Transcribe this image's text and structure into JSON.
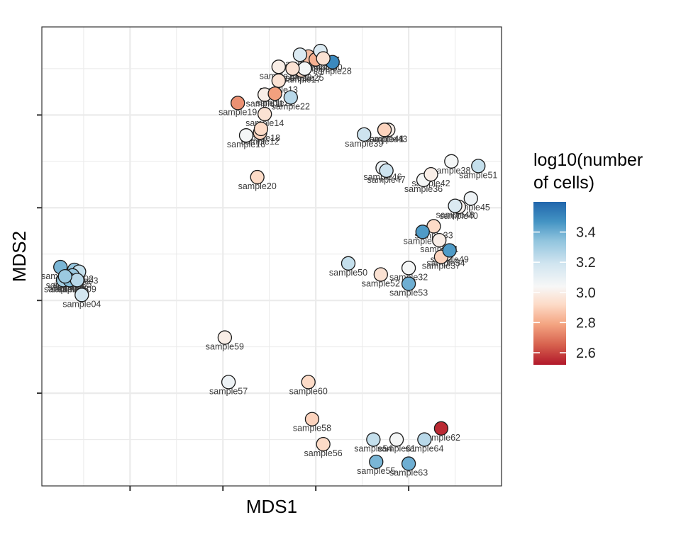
{
  "chart_data": {
    "type": "scatter",
    "xlabel": "MDS1",
    "ylabel": "MDS2",
    "xlim": [
      -1.95,
      3.0
    ],
    "ylim": [
      -2.0,
      2.95
    ],
    "x_major_ticks": [
      -1,
      0,
      1,
      2
    ],
    "y_major_ticks": [
      -1,
      0,
      1,
      2
    ],
    "grid": true,
    "x_tick_labels_shown": false,
    "y_tick_labels_shown": false,
    "color_scale": {
      "title_line1": "log10(number",
      "title_line2": "of cells)",
      "min": 2.52,
      "max": 3.6,
      "ticks": [
        2.6,
        2.8,
        3.0,
        3.2,
        3.4
      ],
      "tick_labels": [
        "2.6",
        "2.8",
        "3.0",
        "3.2",
        "3.4"
      ],
      "low_color": "#b2182b",
      "mid_color": "#f7f7f7",
      "high_color": "#2166ac"
    },
    "legend_position": "right",
    "points": [
      {
        "label": "sample01",
        "x": -1.75,
        "y": 0.36,
        "c": 3.38
      },
      {
        "label": "sample02",
        "x": -1.6,
        "y": 0.33,
        "c": 3.33
      },
      {
        "label": "sample03",
        "x": -1.55,
        "y": 0.31,
        "c": 3.22
      },
      {
        "label": "sample04",
        "x": -1.52,
        "y": 0.06,
        "c": 3.18
      },
      {
        "label": "sample05",
        "x": -1.62,
        "y": 0.27,
        "c": 3.32
      },
      {
        "label": "sample06",
        "x": -1.68,
        "y": 0.24,
        "c": 3.35
      },
      {
        "label": "sample07",
        "x": -1.72,
        "y": 0.22,
        "c": 3.3
      },
      {
        "label": "sample08",
        "x": -1.65,
        "y": 0.22,
        "c": 3.36
      },
      {
        "label": "sample09",
        "x": -1.57,
        "y": 0.22,
        "c": 3.25
      },
      {
        "label": "sample10",
        "x": -1.7,
        "y": 0.26,
        "c": 3.32
      },
      {
        "label": "sample11",
        "x": 0.45,
        "y": 2.22,
        "c": 3.0
      },
      {
        "label": "sample12",
        "x": 0.4,
        "y": 1.81,
        "c": 2.9
      },
      {
        "label": "sample13",
        "x": 0.6,
        "y": 2.37,
        "c": 2.95
      },
      {
        "label": "sample14",
        "x": 0.45,
        "y": 2.01,
        "c": 2.95
      },
      {
        "label": "sample15",
        "x": 0.6,
        "y": 2.52,
        "c": 3.0
      },
      {
        "label": "sample16",
        "x": 0.25,
        "y": 1.78,
        "c": 3.05
      },
      {
        "label": "sample17",
        "x": 0.85,
        "y": 2.48,
        "c": 2.92
      },
      {
        "label": "sample18",
        "x": 0.41,
        "y": 1.85,
        "c": 2.92
      },
      {
        "label": "sample19",
        "x": 0.16,
        "y": 2.13,
        "c": 2.75
      },
      {
        "label": "sample20",
        "x": 0.37,
        "y": 1.33,
        "c": 2.92
      },
      {
        "label": "sample21",
        "x": 0.56,
        "y": 2.23,
        "c": 2.78
      },
      {
        "label": "sample22",
        "x": 0.73,
        "y": 2.19,
        "c": 3.25
      },
      {
        "label": "sample23",
        "x": 0.92,
        "y": 2.63,
        "c": 2.85
      },
      {
        "label": "sample24",
        "x": 1.0,
        "y": 2.6,
        "c": 2.82
      },
      {
        "label": "sample25",
        "x": 0.88,
        "y": 2.5,
        "c": 3.05
      },
      {
        "label": "sample26",
        "x": 0.75,
        "y": 2.5,
        "c": 2.95
      },
      {
        "label": "sample27",
        "x": 1.05,
        "y": 2.69,
        "c": 3.15
      },
      {
        "label": "sample28",
        "x": 1.18,
        "y": 2.57,
        "c": 3.5
      },
      {
        "label": "sample29",
        "x": 0.83,
        "y": 2.65,
        "c": 3.15
      },
      {
        "label": "sample30",
        "x": 1.08,
        "y": 2.61,
        "c": 2.95
      },
      {
        "label": "sample31",
        "x": 2.33,
        "y": 0.65,
        "c": 3.0
      },
      {
        "label": "sample32",
        "x": 2.0,
        "y": 0.35,
        "c": 3.05
      },
      {
        "label": "sample33",
        "x": 2.27,
        "y": 0.8,
        "c": 2.92
      },
      {
        "label": "sample34",
        "x": 2.4,
        "y": 0.5,
        "c": 3.0
      },
      {
        "label": "sample35",
        "x": 2.15,
        "y": 0.74,
        "c": 3.45
      },
      {
        "label": "sample36",
        "x": 2.16,
        "y": 1.3,
        "c": 3.05
      },
      {
        "label": "sample37",
        "x": 2.35,
        "y": 0.47,
        "c": 2.9
      },
      {
        "label": "sample38",
        "x": 2.46,
        "y": 1.5,
        "c": 3.05
      },
      {
        "label": "sample39",
        "x": 1.52,
        "y": 1.79,
        "c": 3.2
      },
      {
        "label": "sample40",
        "x": 2.54,
        "y": 1.01,
        "c": 3.02
      },
      {
        "label": "sample41",
        "x": 1.74,
        "y": 1.84,
        "c": 2.95
      },
      {
        "label": "sample42",
        "x": 2.24,
        "y": 1.36,
        "c": 3.0
      },
      {
        "label": "sample43",
        "x": 1.78,
        "y": 1.84,
        "c": 3.0
      },
      {
        "label": "sample44",
        "x": 1.74,
        "y": 1.84,
        "c": 2.9
      },
      {
        "label": "sample45",
        "x": 2.67,
        "y": 1.1,
        "c": 3.08
      },
      {
        "label": "sample46",
        "x": 1.72,
        "y": 1.43,
        "c": 3.08
      },
      {
        "label": "sample47",
        "x": 1.76,
        "y": 1.4,
        "c": 3.2
      },
      {
        "label": "sample48",
        "x": 2.5,
        "y": 1.02,
        "c": 3.15
      },
      {
        "label": "sample49",
        "x": 2.44,
        "y": 0.54,
        "c": 3.45
      },
      {
        "label": "sample50",
        "x": 1.35,
        "y": 0.4,
        "c": 3.22
      },
      {
        "label": "sample51",
        "x": 2.75,
        "y": 1.45,
        "c": 3.22
      },
      {
        "label": "sample52",
        "x": 1.7,
        "y": 0.28,
        "c": 2.95
      },
      {
        "label": "sample53",
        "x": 2.0,
        "y": 0.18,
        "c": 3.4
      },
      {
        "label": "sample54",
        "x": 1.62,
        "y": -1.5,
        "c": 3.22
      },
      {
        "label": "sample55",
        "x": 1.65,
        "y": -1.74,
        "c": 3.38
      },
      {
        "label": "sample56",
        "x": 1.08,
        "y": -1.55,
        "c": 2.92
      },
      {
        "label": "sample57",
        "x": 0.06,
        "y": -0.88,
        "c": 3.08
      },
      {
        "label": "sample58",
        "x": 0.96,
        "y": -1.28,
        "c": 2.9
      },
      {
        "label": "sample59",
        "x": 0.02,
        "y": -0.4,
        "c": 3.0
      },
      {
        "label": "sample60",
        "x": 0.92,
        "y": -0.88,
        "c": 2.92
      },
      {
        "label": "sample61",
        "x": 1.87,
        "y": -1.5,
        "c": 3.05
      },
      {
        "label": "sample62",
        "x": 2.35,
        "y": -1.38,
        "c": 2.55
      },
      {
        "label": "sample63",
        "x": 2.0,
        "y": -1.76,
        "c": 3.4
      },
      {
        "label": "sample64",
        "x": 2.17,
        "y": -1.5,
        "c": 3.25
      }
    ]
  }
}
